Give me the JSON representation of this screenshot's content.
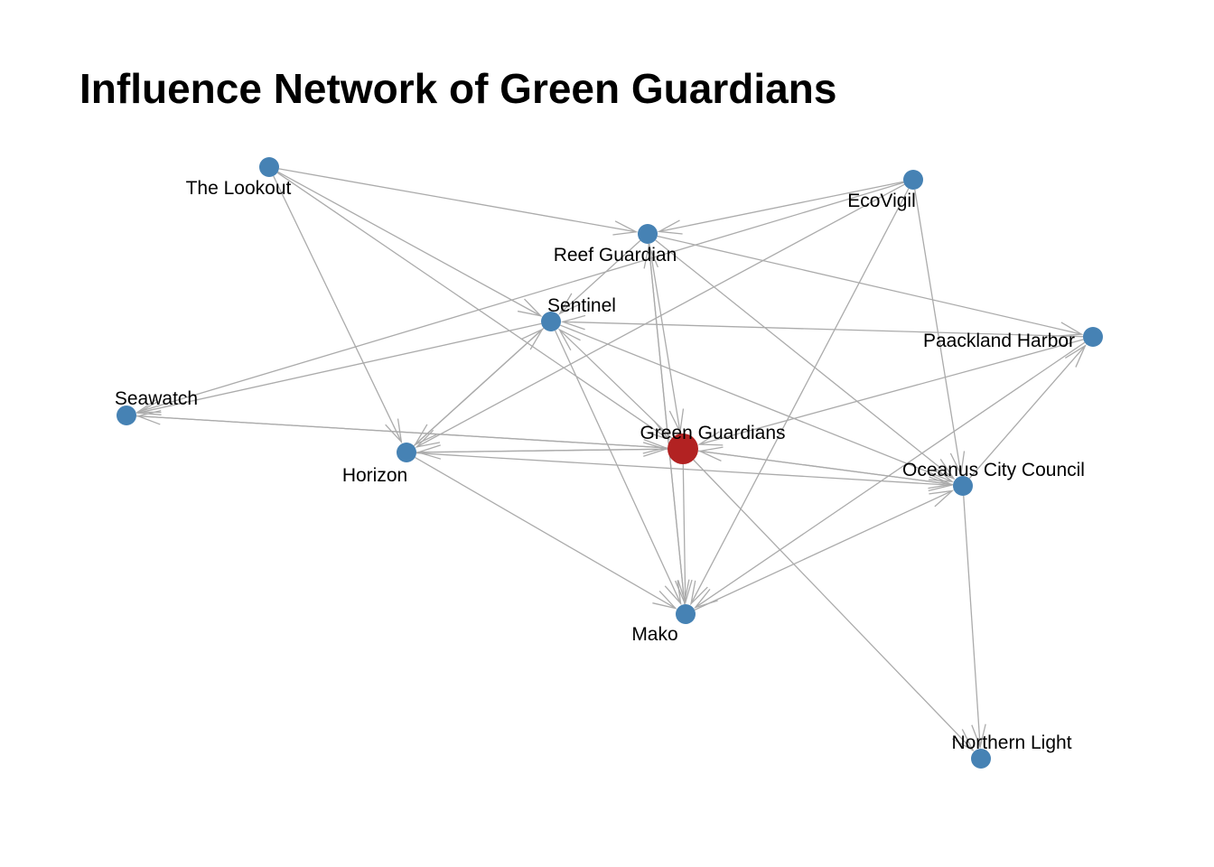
{
  "title": "Influence Network of Green Guardians",
  "colors": {
    "focus": "#b22222",
    "node": "#4682b4",
    "edge": "#ababab"
  },
  "nodes": [
    {
      "id": "green-guardians",
      "label": "Green Guardians",
      "focus": true
    },
    {
      "id": "the-lookout",
      "label": "The Lookout"
    },
    {
      "id": "ecovigil",
      "label": "EcoVigil"
    },
    {
      "id": "reef-guardian",
      "label": "Reef Guardian"
    },
    {
      "id": "sentinel",
      "label": "Sentinel"
    },
    {
      "id": "paackland-harbor",
      "label": "Paackland Harbor"
    },
    {
      "id": "seawatch",
      "label": "Seawatch"
    },
    {
      "id": "horizon",
      "label": "Horizon"
    },
    {
      "id": "oceanus-city-council",
      "label": "Oceanus City Council"
    },
    {
      "id": "mako",
      "label": "Mako"
    },
    {
      "id": "northern-light",
      "label": "Northern Light"
    }
  ],
  "edges": [
    {
      "from": "the-lookout",
      "to": "reef-guardian"
    },
    {
      "from": "the-lookout",
      "to": "sentinel"
    },
    {
      "from": "the-lookout",
      "to": "horizon"
    },
    {
      "from": "the-lookout",
      "to": "green-guardians"
    },
    {
      "from": "ecovigil",
      "to": "reef-guardian"
    },
    {
      "from": "ecovigil",
      "to": "seawatch"
    },
    {
      "from": "ecovigil",
      "to": "horizon"
    },
    {
      "from": "ecovigil",
      "to": "mako"
    },
    {
      "from": "ecovigil",
      "to": "oceanus-city-council"
    },
    {
      "from": "reef-guardian",
      "to": "sentinel"
    },
    {
      "from": "reef-guardian",
      "to": "paackland-harbor"
    },
    {
      "from": "reef-guardian",
      "to": "green-guardians"
    },
    {
      "from": "reef-guardian",
      "to": "mako"
    },
    {
      "from": "reef-guardian",
      "to": "oceanus-city-council"
    },
    {
      "from": "sentinel",
      "to": "seawatch"
    },
    {
      "from": "sentinel",
      "to": "horizon"
    },
    {
      "from": "sentinel",
      "to": "mako"
    },
    {
      "from": "sentinel",
      "to": "oceanus-city-council"
    },
    {
      "from": "paackland-harbor",
      "to": "sentinel"
    },
    {
      "from": "paackland-harbor",
      "to": "green-guardians"
    },
    {
      "from": "paackland-harbor",
      "to": "mako"
    },
    {
      "from": "seawatch",
      "to": "green-guardians"
    },
    {
      "from": "horizon",
      "to": "green-guardians"
    },
    {
      "from": "horizon",
      "to": "mako"
    },
    {
      "from": "horizon",
      "to": "oceanus-city-council"
    },
    {
      "from": "horizon",
      "to": "sentinel"
    },
    {
      "from": "green-guardians",
      "to": "seawatch"
    },
    {
      "from": "green-guardians",
      "to": "horizon"
    },
    {
      "from": "green-guardians",
      "to": "mako"
    },
    {
      "from": "green-guardians",
      "to": "oceanus-city-council"
    },
    {
      "from": "green-guardians",
      "to": "northern-light"
    },
    {
      "from": "green-guardians",
      "to": "sentinel"
    },
    {
      "from": "oceanus-city-council",
      "to": "green-guardians"
    },
    {
      "from": "oceanus-city-council",
      "to": "northern-light"
    },
    {
      "from": "oceanus-city-council",
      "to": "paackland-harbor"
    },
    {
      "from": "mako",
      "to": "oceanus-city-council"
    },
    {
      "from": "mako",
      "to": "reef-guardian"
    }
  ]
}
